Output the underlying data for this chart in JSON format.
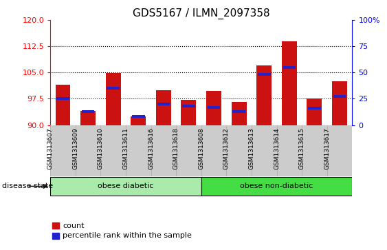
{
  "title": "GDS5167 / ILMN_2097358",
  "samples": [
    "GSM1313607",
    "GSM1313609",
    "GSM1313610",
    "GSM1313611",
    "GSM1313616",
    "GSM1313618",
    "GSM1313608",
    "GSM1313612",
    "GSM1313613",
    "GSM1313614",
    "GSM1313615",
    "GSM1313617"
  ],
  "count_values": [
    101.5,
    94.0,
    104.8,
    92.5,
    100.0,
    97.2,
    99.8,
    96.5,
    107.0,
    114.0,
    97.5,
    102.5
  ],
  "percentile_values": [
    25,
    13,
    35,
    8,
    20,
    18,
    17,
    13,
    48,
    55,
    16,
    27
  ],
  "y_min": 90,
  "y_max": 120,
  "y_ticks": [
    90,
    97.5,
    105,
    112.5,
    120
  ],
  "y2_ticks": [
    0,
    25,
    50,
    75,
    100
  ],
  "bar_color": "#cc1111",
  "percentile_color": "#2222cc",
  "bar_width": 0.6,
  "groups": [
    {
      "label": "obese diabetic",
      "start": 0,
      "end": 6,
      "color": "#aaeaaa"
    },
    {
      "label": "obese non-diabetic",
      "start": 6,
      "end": 12,
      "color": "#44dd44"
    }
  ],
  "disease_state_label": "disease state",
  "legend_count_label": "count",
  "legend_percentile_label": "percentile rank within the sample",
  "tick_bg_color": "#cccccc",
  "title_fontsize": 11,
  "tick_fontsize": 7
}
